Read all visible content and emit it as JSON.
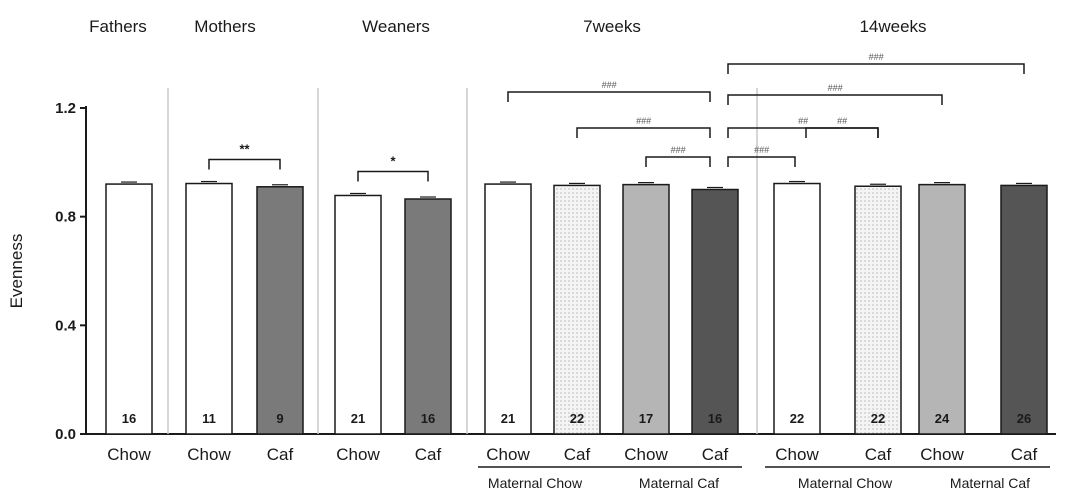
{
  "chart_data": {
    "type": "bar",
    "ylabel": "Evenness",
    "ylim": [
      0,
      1.2
    ],
    "yticks": [
      "0.0",
      "0.4",
      "0.8",
      "1.2"
    ],
    "panels": [
      {
        "title": "Fathers",
        "bars": [
          {
            "category": "Chow",
            "value": 0.92,
            "n": "16",
            "fill": "white"
          }
        ]
      },
      {
        "title": "Mothers",
        "bars": [
          {
            "category": "Chow",
            "value": 0.922,
            "n": "11",
            "fill": "white"
          },
          {
            "category": "Caf",
            "value": 0.91,
            "n": "9",
            "fill": "midgray"
          }
        ],
        "annotations": [
          {
            "text": "**",
            "from": 0,
            "to": 1
          }
        ]
      },
      {
        "title": "Weaners",
        "bars": [
          {
            "category": "Chow",
            "value": 0.878,
            "n": "21",
            "fill": "white"
          },
          {
            "category": "Caf",
            "value": 0.865,
            "n": "16",
            "fill": "midgray"
          }
        ],
        "annotations": [
          {
            "text": "*",
            "from": 0,
            "to": 1
          }
        ]
      },
      {
        "title": "7weeks",
        "bars": [
          {
            "category": "Chow",
            "value": 0.92,
            "n": "21",
            "fill": "white"
          },
          {
            "category": "Caf",
            "value": 0.915,
            "n": "22",
            "fill": "dotted"
          },
          {
            "category": "Chow",
            "value": 0.918,
            "n": "17",
            "fill": "lightgray"
          },
          {
            "category": "Caf",
            "value": 0.9,
            "n": "16",
            "fill": "darkgray"
          }
        ],
        "groups": [
          "Maternal Chow",
          "Maternal Caf"
        ]
      },
      {
        "title": "14weeks",
        "bars": [
          {
            "category": "Chow",
            "value": 0.922,
            "n": "22",
            "fill": "white"
          },
          {
            "category": "Caf",
            "value": 0.912,
            "n": "22",
            "fill": "dotted"
          },
          {
            "category": "Chow",
            "value": 0.918,
            "n": "24",
            "fill": "lightgray"
          },
          {
            "category": "Caf",
            "value": 0.915,
            "n": "26",
            "fill": "darkgray"
          }
        ],
        "groups": [
          "Maternal Chow",
          "Maternal Caf"
        ]
      }
    ],
    "comparison_brackets": [
      {
        "text": "###",
        "from": "7weeks-0",
        "to": "7weeks-3"
      },
      {
        "text": "###",
        "from": "7weeks-1",
        "to": "7weeks-3"
      },
      {
        "text": "###",
        "from": "7weeks-2",
        "to": "7weeks-3"
      },
      {
        "text": "###",
        "from": "7weeks-3",
        "to": "14weeks-0"
      },
      {
        "text": "##",
        "from": "14weeks-0",
        "to": "14weeks-1"
      },
      {
        "text": "##",
        "from": "7weeks-3",
        "to": "14weeks-1"
      },
      {
        "text": "###",
        "from": "7weeks-3",
        "to": "14weeks-2"
      },
      {
        "text": "###",
        "from": "7weeks-3",
        "to": "14weeks-3"
      }
    ],
    "colors": {
      "white": "#ffffff",
      "midgray": "#7a7a7a",
      "lightgray": "#b5b5b5",
      "darkgray": "#555555",
      "dotted": "#f4f4f4",
      "axis": "#1a1a1a",
      "divider": "#c8c8c8"
    }
  }
}
